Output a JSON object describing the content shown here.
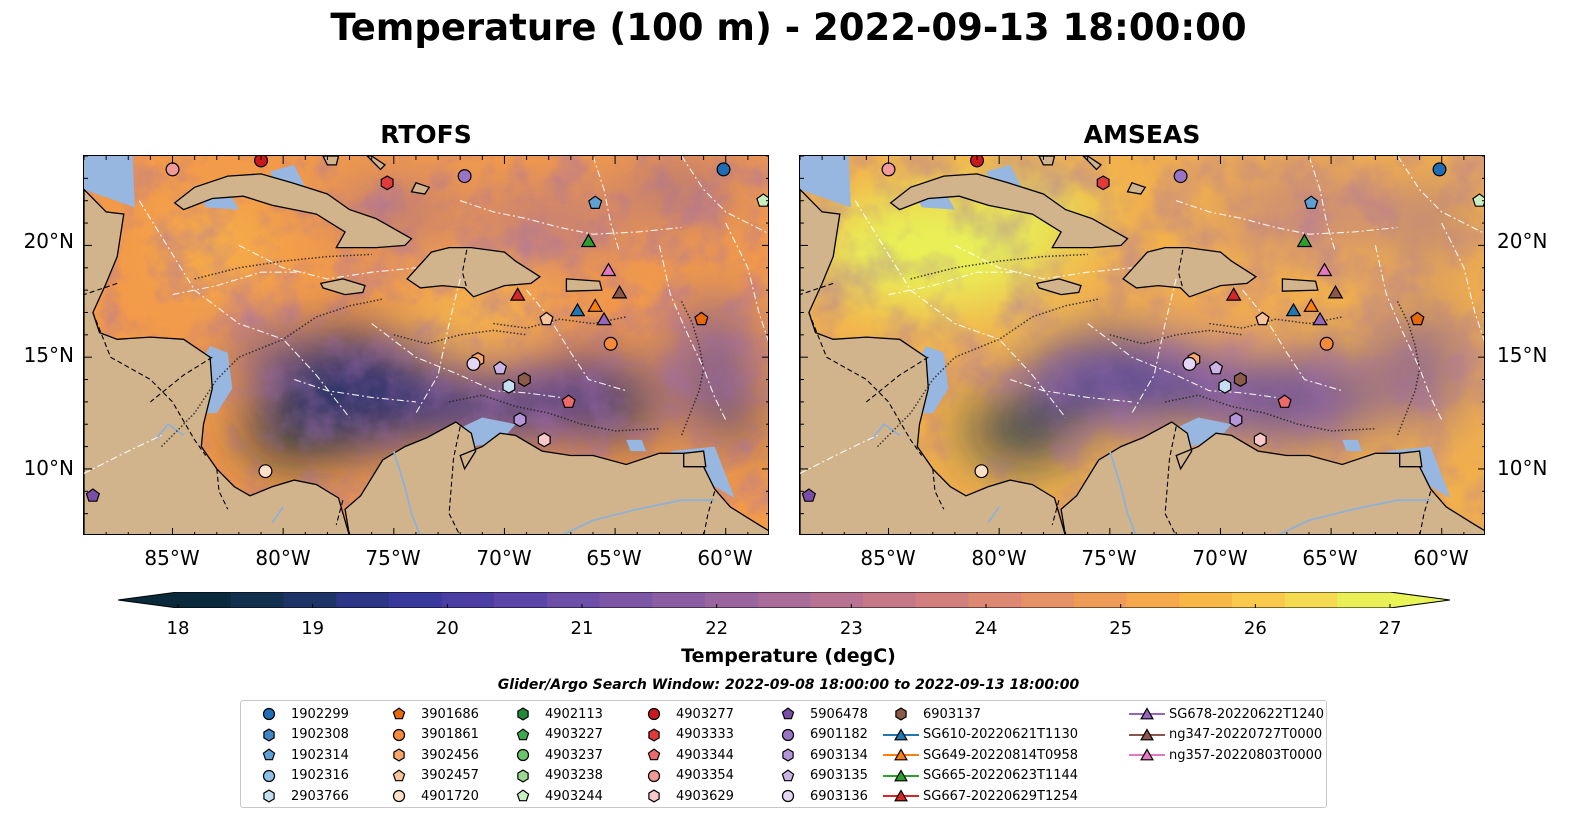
{
  "title": "Temperature (100 m) - 2022-09-13 18:00:00",
  "panels": [
    {
      "title": "RTOFS"
    },
    {
      "title": "AMSEAS"
    }
  ],
  "map_extent": {
    "lon": [
      -89,
      -58
    ],
    "lat": [
      7,
      24
    ]
  },
  "lon_ticks": [
    {
      "value": -85,
      "label": "85°W"
    },
    {
      "value": -80,
      "label": "80°W"
    },
    {
      "value": -75,
      "label": "75°W"
    },
    {
      "value": -70,
      "label": "70°W"
    },
    {
      "value": -65,
      "label": "65°W"
    },
    {
      "value": -60,
      "label": "60°W"
    }
  ],
  "lat_ticks": [
    {
      "value": 20,
      "label": "20°N"
    },
    {
      "value": 15,
      "label": "15°N"
    },
    {
      "value": 10,
      "label": "10°N"
    }
  ],
  "colorbar": {
    "label": "Temperature (degC)",
    "min": 18,
    "max": 27,
    "ticks": [
      "18",
      "19",
      "20",
      "21",
      "22",
      "23",
      "24",
      "25",
      "26",
      "27"
    ],
    "colors": [
      "#0a2a3c",
      "#14304f",
      "#1f3466",
      "#2d3585",
      "#39389b",
      "#4b3ea3",
      "#5d46a7",
      "#6d4fa8",
      "#7d56a6",
      "#8b5ea3",
      "#9a669f",
      "#a96d99",
      "#b77391",
      "#c57988",
      "#d2807e",
      "#dd8873",
      "#e79166",
      "#ef9b58",
      "#f5a84c",
      "#f8b846",
      "#f8c94a",
      "#f4db52",
      "#e9ef57"
    ],
    "low_color": "#0a2a3c",
    "high_color": "#e9f457"
  },
  "search_window": "Glider/Argo Search Window: 2022-09-08 18:00:00 to 2022-09-13 18:00:00",
  "colors": {
    "land": "#d2b48c",
    "shelf": "#97b6e0",
    "rtofs_warm": "#f29a4a",
    "amseas_warm": "#f2b04c"
  },
  "legend": [
    {
      "label": "1902299",
      "marker": "circle",
      "color": "#1f6db4"
    },
    {
      "label": "1902308",
      "marker": "hexagon",
      "color": "#3f86c6"
    },
    {
      "label": "1902314",
      "marker": "pentagon",
      "color": "#5e9fd4"
    },
    {
      "label": "1902316",
      "marker": "circle",
      "color": "#8dbfe6"
    },
    {
      "label": "2903766",
      "marker": "hexagon",
      "color": "#c6def2"
    },
    {
      "label": "3901686",
      "marker": "pentagon",
      "color": "#e8680c"
    },
    {
      "label": "3901861",
      "marker": "circle",
      "color": "#f48a3a"
    },
    {
      "label": "3902456",
      "marker": "hexagon",
      "color": "#f7a868"
    },
    {
      "label": "3902457",
      "marker": "pentagon",
      "color": "#f9c499"
    },
    {
      "label": "4901720",
      "marker": "circle",
      "color": "#fde0c5"
    },
    {
      "label": "4902113",
      "marker": "hexagon",
      "color": "#1f8a3a"
    },
    {
      "label": "4903227",
      "marker": "pentagon",
      "color": "#3caa4c"
    },
    {
      "label": "4903237",
      "marker": "circle",
      "color": "#6cc46a"
    },
    {
      "label": "4903238",
      "marker": "hexagon",
      "color": "#9ad890"
    },
    {
      "label": "4903244",
      "marker": "pentagon",
      "color": "#c9eec0"
    },
    {
      "label": "4903277",
      "marker": "circle",
      "color": "#c8191e"
    },
    {
      "label": "4903333",
      "marker": "hexagon",
      "color": "#e03b3b"
    },
    {
      "label": "4903344",
      "marker": "pentagon",
      "color": "#ec6a6a"
    },
    {
      "label": "4903354",
      "marker": "circle",
      "color": "#f29a9a"
    },
    {
      "label": "4903629",
      "marker": "hexagon",
      "color": "#f9c8c8"
    },
    {
      "label": "5906478",
      "marker": "pentagon",
      "color": "#7a4ea8"
    },
    {
      "label": "6901182",
      "marker": "circle",
      "color": "#9a74c4"
    },
    {
      "label": "6903134",
      "marker": "hexagon",
      "color": "#b495d8"
    },
    {
      "label": "6903135",
      "marker": "pentagon",
      "color": "#ccb5e6"
    },
    {
      "label": "6903136",
      "marker": "circle",
      "color": "#e4d6f4"
    },
    {
      "label": "6903137",
      "marker": "hexagon",
      "color": "#8c5a48"
    },
    {
      "label": "SG610-20220621T1130",
      "marker": "triangle",
      "color": "#1f77b4"
    },
    {
      "label": "SG649-20220814T0958",
      "marker": "triangle",
      "color": "#ff7f0e"
    },
    {
      "label": "SG665-20220623T1144",
      "marker": "triangle",
      "color": "#2ca02c"
    },
    {
      "label": "SG667-20220629T1254",
      "marker": "triangle",
      "color": "#d62728"
    },
    {
      "label": "SG678-20220622T1240",
      "marker": "triangle",
      "color": "#9467bd"
    },
    {
      "label": "ng347-20220727T0000",
      "marker": "triangle",
      "color": "#8c564b"
    },
    {
      "label": "ng357-20220803T0000",
      "marker": "triangle",
      "color": "#e377c2"
    }
  ],
  "observations": [
    {
      "id": "4903354",
      "lon": -85.0,
      "lat": 23.4
    },
    {
      "id": "4903277",
      "lon": -81.0,
      "lat": 23.8
    },
    {
      "id": "4903333",
      "lon": -75.3,
      "lat": 22.8
    },
    {
      "id": "6901182",
      "lon": -71.8,
      "lat": 23.1
    },
    {
      "id": "1902299",
      "lon": -60.1,
      "lat": 23.4
    },
    {
      "id": "1902314",
      "lon": -65.9,
      "lat": 21.9
    },
    {
      "id": "4903244",
      "lon": -58.3,
      "lat": 22.0
    },
    {
      "id": "SG665-20220623T1144",
      "lon": -66.2,
      "lat": 20.2
    },
    {
      "id": "ng357-20220803T0000",
      "lon": -65.3,
      "lat": 18.9
    },
    {
      "id": "SG667-20220629T1254",
      "lon": -69.4,
      "lat": 17.8
    },
    {
      "id": "ng347-20220727T0000",
      "lon": -64.8,
      "lat": 17.9
    },
    {
      "id": "SG649-20220814T0958",
      "lon": -65.9,
      "lat": 17.3
    },
    {
      "id": "SG610-20220621T1130",
      "lon": -66.7,
      "lat": 17.1
    },
    {
      "id": "SG678-20220622T1240",
      "lon": -65.5,
      "lat": 16.7
    },
    {
      "id": "3902457",
      "lon": -68.1,
      "lat": 16.7
    },
    {
      "id": "3901686",
      "lon": -61.1,
      "lat": 16.7
    },
    {
      "id": "3901861",
      "lon": -65.2,
      "lat": 15.6
    },
    {
      "id": "3902456",
      "lon": -71.2,
      "lat": 14.9
    },
    {
      "id": "6903136",
      "lon": -71.4,
      "lat": 14.7
    },
    {
      "id": "6903135",
      "lon": -70.2,
      "lat": 14.5
    },
    {
      "id": "6903137",
      "lon": -69.1,
      "lat": 14.0
    },
    {
      "id": "2903766",
      "lon": -69.8,
      "lat": 13.7
    },
    {
      "id": "4903344",
      "lon": -67.1,
      "lat": 13.0
    },
    {
      "id": "6903134",
      "lon": -69.3,
      "lat": 12.2
    },
    {
      "id": "4903629",
      "lon": -68.2,
      "lat": 11.3
    },
    {
      "id": "4901720",
      "lon": -80.8,
      "lat": 9.9
    },
    {
      "id": "5906478",
      "lon": -88.6,
      "lat": 8.8
    }
  ]
}
